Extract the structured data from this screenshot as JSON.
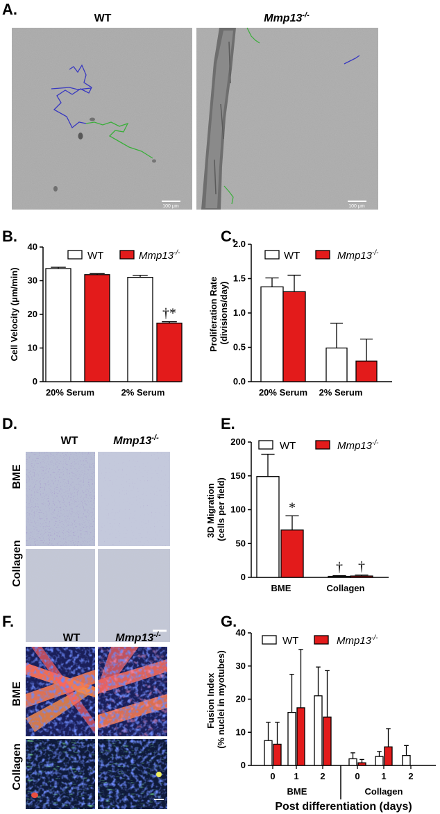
{
  "panel_labels": {
    "a": "A.",
    "b": "B.",
    "c": "C.",
    "d": "D.",
    "e": "E.",
    "f": "F.",
    "g": "G."
  },
  "genotypes": {
    "wt": "WT",
    "ko_base": "Mmp13",
    "ko_sup": "-/-"
  },
  "scale_bar_text": "100 μm",
  "row_labels": {
    "bme": "BME",
    "collagen": "Collagen"
  },
  "colors": {
    "wt_fill": "#ffffff",
    "ko_fill": "#e31b1b",
    "axis": "#000000",
    "track_wt": "#3838c0",
    "track_ko": "#3aae3a"
  },
  "chart_data": [
    {
      "id": "B",
      "type": "bar",
      "ylabel": "Cell Velocity  (μm/min)",
      "ylim": [
        0,
        40
      ],
      "yticks": [
        0,
        10,
        20,
        30,
        40
      ],
      "categories": [
        "20% Serum",
        "2% Serum"
      ],
      "series": [
        {
          "name": "WT",
          "values": [
            33.6,
            31.0
          ],
          "errors": [
            0.4,
            0.6
          ]
        },
        {
          "name": "Mmp13-/-",
          "values": [
            31.8,
            17.4
          ],
          "errors": [
            0.3,
            0.4
          ]
        }
      ],
      "annotations": [
        {
          "text": "†*",
          "category": 1,
          "series": 1
        }
      ],
      "legend": "top"
    },
    {
      "id": "C",
      "type": "bar",
      "ylabel": "Proliferation  Rate (divisions/day)",
      "ylim": [
        0,
        2.0
      ],
      "yticks": [
        0.0,
        0.5,
        1.0,
        1.5,
        2.0
      ],
      "categories": [
        "20% Serum",
        "2% Serum"
      ],
      "series": [
        {
          "name": "WT",
          "values": [
            1.38,
            0.49
          ],
          "errors": [
            0.13,
            0.36
          ]
        },
        {
          "name": "Mmp13-/-",
          "values": [
            1.31,
            0.3
          ],
          "errors": [
            0.24,
            0.32
          ]
        }
      ],
      "legend": "top"
    },
    {
      "id": "E",
      "type": "bar",
      "ylabel": "3D Migration (cells per field)",
      "ylim": [
        0,
        200
      ],
      "yticks": [
        0,
        50,
        100,
        150,
        200
      ],
      "categories": [
        "BME",
        "Collagen"
      ],
      "series": [
        {
          "name": "WT",
          "values": [
            149,
            1.5
          ],
          "errors": [
            33,
            1.0
          ]
        },
        {
          "name": "Mmp13-/-",
          "values": [
            70,
            2
          ],
          "errors": [
            21,
            1.5
          ]
        }
      ],
      "annotations": [
        {
          "text": "*",
          "category": 0,
          "series": 1
        },
        {
          "text": "†",
          "category": 1,
          "series": 0
        },
        {
          "text": "†",
          "category": 1,
          "series": 1
        }
      ],
      "legend": "top"
    },
    {
      "id": "G",
      "type": "bar",
      "ylabel": "Fusion  Index (% nuclei in myotubes)",
      "xlabel": "Post differentiation (days)",
      "ylim": [
        0,
        40
      ],
      "yticks": [
        0,
        10,
        20,
        30,
        40
      ],
      "groups": [
        {
          "name": "BME",
          "days": [
            "0",
            "1",
            "2"
          ]
        },
        {
          "name": "Collagen",
          "days": [
            "0",
            "1",
            "2"
          ]
        }
      ],
      "series": [
        {
          "name": "WT",
          "values": [
            7.5,
            16,
            21,
            2,
            2.7,
            3
          ],
          "errors": [
            5.5,
            11.5,
            8.7,
            1.8,
            1.5,
            3
          ]
        },
        {
          "name": "Mmp13-/-",
          "values": [
            6.4,
            17.4,
            14.6,
            0.8,
            5.6,
            0
          ],
          "errors": [
            6.6,
            17.6,
            14,
            1,
            5.5,
            0
          ]
        }
      ],
      "legend": "top"
    }
  ]
}
